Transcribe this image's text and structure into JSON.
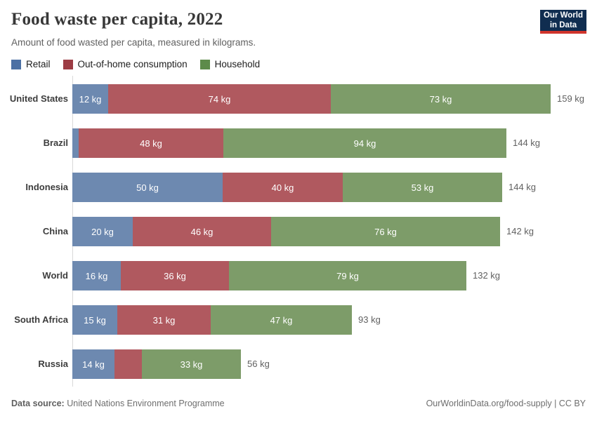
{
  "header": {
    "title": "Food waste per capita, 2022",
    "subtitle": "Amount of food wasted per capita, measured in kilograms.",
    "logo": {
      "line1": "Our World",
      "line2": "in Data",
      "bg_color": "#102d50",
      "accent_color": "#d0342c"
    }
  },
  "chart_data": {
    "type": "bar",
    "stacked": true,
    "orientation": "horizontal",
    "title": "Food waste per capita, 2022",
    "subtitle": "Amount of food wasted per capita, measured in kilograms.",
    "unit": "kg",
    "grid": false,
    "legend_position": "top",
    "xlim": [
      0,
      159
    ],
    "categories": [
      "United States",
      "Brazil",
      "Indonesia",
      "China",
      "World",
      "South Africa",
      "Russia"
    ],
    "series": [
      {
        "name": "Retail",
        "color": "#4c70a4",
        "bar_color": "#6d89b0",
        "values": [
          12,
          2,
          50,
          20,
          16,
          15,
          14
        ]
      },
      {
        "name": "Out-of-home consumption",
        "color": "#9c3c44",
        "bar_color": "#b0595f",
        "values": [
          74,
          48,
          40,
          46,
          36,
          31,
          9
        ]
      },
      {
        "name": "Household",
        "color": "#5d8b4a",
        "bar_color": "#7d9c69",
        "values": [
          73,
          94,
          53,
          76,
          79,
          47,
          33
        ]
      }
    ],
    "totals": [
      159,
      144,
      144,
      142,
      132,
      93,
      56
    ],
    "shown_segment_labels": [
      "12 kg",
      "74 kg",
      "73 kg",
      "48 kg",
      "94 kg",
      "50 kg",
      "40 kg",
      "53 kg",
      "20 kg",
      "46 kg",
      "76 kg",
      "16 kg",
      "36 kg",
      "79 kg",
      "15 kg",
      "31 kg",
      "47 kg",
      "14 kg",
      "33 kg"
    ],
    "total_labels": [
      "159 kg",
      "144 kg",
      "144 kg",
      "142 kg",
      "132 kg",
      "93 kg",
      "56 kg"
    ]
  },
  "footer": {
    "source_label": "Data source:",
    "source_value": "United Nations Environment Programme",
    "credit": "OurWorldinData.org/food-supply | CC BY"
  }
}
